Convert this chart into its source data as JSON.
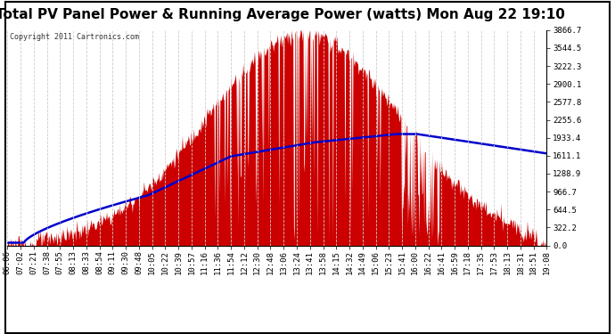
{
  "title": "Total PV Panel Power & Running Average Power (watts) Mon Aug 22 19:10",
  "copyright": "Copyright 2011 Cartronics.com",
  "ylabel_right_values": [
    0.0,
    322.2,
    644.5,
    966.7,
    1288.9,
    1611.1,
    1933.4,
    2255.6,
    2577.8,
    2900.1,
    3222.3,
    3544.5,
    3866.7
  ],
  "ymax": 3866.7,
  "ymin": 0.0,
  "background_color": "#ffffff",
  "fill_color": "#cc0000",
  "line_color": "#0000cc",
  "grid_color": "#cccccc",
  "title_fontsize": 11,
  "copyright_fontsize": 6,
  "tick_fontsize": 6.5,
  "x_tick_labels": [
    "06:06",
    "07:02",
    "07:21",
    "07:38",
    "07:55",
    "08:13",
    "08:33",
    "08:54",
    "09:11",
    "09:30",
    "09:48",
    "10:05",
    "10:22",
    "10:39",
    "10:57",
    "11:16",
    "11:36",
    "11:54",
    "12:12",
    "12:30",
    "12:48",
    "13:06",
    "13:24",
    "13:41",
    "13:58",
    "14:15",
    "14:32",
    "14:49",
    "15:06",
    "15:23",
    "15:41",
    "16:00",
    "16:22",
    "16:41",
    "16:59",
    "17:18",
    "17:35",
    "17:53",
    "18:13",
    "18:31",
    "18:51",
    "19:08"
  ]
}
